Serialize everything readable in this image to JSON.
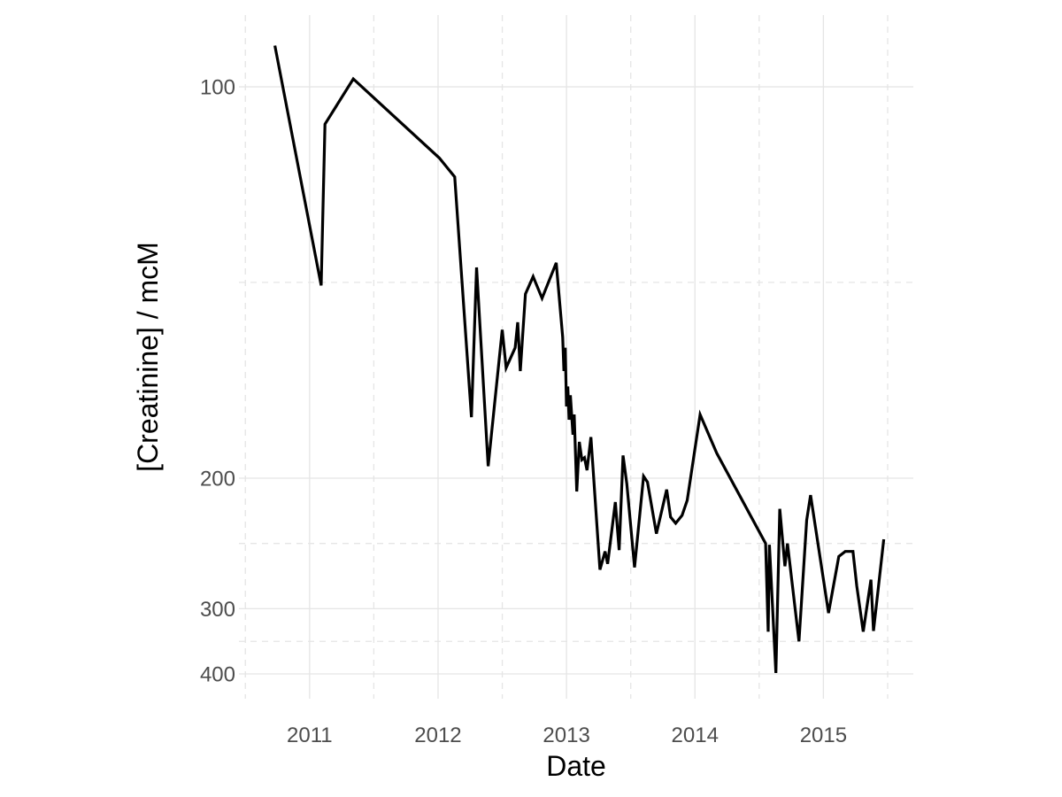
{
  "figure": {
    "background_color": "#ffffff"
  },
  "chart_data": {
    "type": "line",
    "title": "",
    "xlabel": "Date",
    "ylabel": "[Creatinine] / mcM",
    "y_scale": "reciprocal (axis linear in 1/value; higher concentration plotted lower)",
    "legend": "none",
    "grid": {
      "major": "solid",
      "minor": "dashed"
    },
    "line_color": "#000000",
    "grid_color": "#e5e5e5",
    "tick_label_color": "#4d4d4d",
    "axis_title_color": "#000000",
    "x_tick_values": [
      2011,
      2012,
      2013,
      2014,
      2015
    ],
    "x_tick_labels": [
      "2011",
      "2012",
      "2013",
      "2014",
      "2015"
    ],
    "x_minor_values": [
      2010.5,
      2011.5,
      2012.5,
      2013.5,
      2014.5,
      2015.5
    ],
    "y_tick_values": [
      100,
      200,
      300,
      400
    ],
    "y_tick_labels": [
      "100",
      "200",
      "300",
      "400"
    ],
    "y_minor_values": [
      133.3,
      240,
      342.9
    ],
    "x_range": [
      2010.45,
      2015.7
    ],
    "y_range": [
      91.6,
      458
    ],
    "series": [
      {
        "name": "creatinine",
        "points": [
          [
            2010.73,
            95
          ],
          [
            2011.09,
            134
          ],
          [
            2011.12,
            105
          ],
          [
            2011.34,
            99
          ],
          [
            2012.01,
            110
          ],
          [
            2012.13,
            113
          ],
          [
            2012.26,
            173
          ],
          [
            2012.3,
            130
          ],
          [
            2012.39,
            194
          ],
          [
            2012.5,
            145
          ],
          [
            2012.53,
            156
          ],
          [
            2012.6,
            150
          ],
          [
            2012.62,
            143
          ],
          [
            2012.64,
            157
          ],
          [
            2012.68,
            136
          ],
          [
            2012.74,
            132
          ],
          [
            2012.81,
            137
          ],
          [
            2012.92,
            129
          ],
          [
            2012.97,
            147
          ],
          [
            2012.98,
            157
          ],
          [
            2012.99,
            150
          ],
          [
            2013.0,
            169
          ],
          [
            2013.01,
            162
          ],
          [
            2013.02,
            174
          ],
          [
            2013.03,
            165
          ],
          [
            2013.05,
            180
          ],
          [
            2013.06,
            172
          ],
          [
            2013.08,
            207
          ],
          [
            2013.1,
            183
          ],
          [
            2013.12,
            191
          ],
          [
            2013.14,
            190
          ],
          [
            2013.16,
            196
          ],
          [
            2013.19,
            181
          ],
          [
            2013.26,
            261
          ],
          [
            2013.3,
            246
          ],
          [
            2013.32,
            256
          ],
          [
            2013.38,
            213
          ],
          [
            2013.41,
            245
          ],
          [
            2013.44,
            189
          ],
          [
            2013.47,
            203
          ],
          [
            2013.53,
            259
          ],
          [
            2013.6,
            199
          ],
          [
            2013.63,
            202
          ],
          [
            2013.7,
            233
          ],
          [
            2013.78,
            206
          ],
          [
            2013.81,
            222
          ],
          [
            2013.85,
            226
          ],
          [
            2013.9,
            221
          ],
          [
            2013.94,
            212
          ],
          [
            2014.04,
            172
          ],
          [
            2014.17,
            188
          ],
          [
            2014.55,
            240
          ],
          [
            2014.57,
            329
          ],
          [
            2014.58,
            241
          ],
          [
            2014.63,
            398
          ],
          [
            2014.66,
            217
          ],
          [
            2014.7,
            258
          ],
          [
            2014.72,
            240
          ],
          [
            2014.81,
            343
          ],
          [
            2014.87,
            224
          ],
          [
            2014.9,
            209
          ],
          [
            2015.04,
            305
          ],
          [
            2015.12,
            250
          ],
          [
            2015.17,
            246
          ],
          [
            2015.23,
            246
          ],
          [
            2015.26,
            276
          ],
          [
            2015.31,
            329
          ],
          [
            2015.37,
            270
          ],
          [
            2015.39,
            328
          ],
          [
            2015.47,
            237
          ]
        ]
      }
    ]
  }
}
